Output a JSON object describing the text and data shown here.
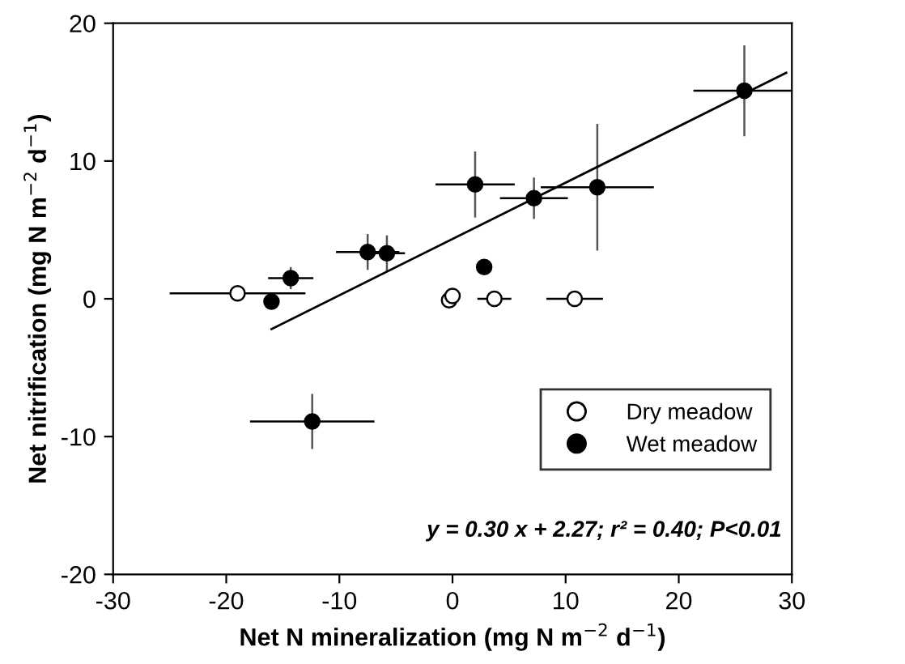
{
  "chart_data": {
    "type": "scatter",
    "xlabel": "Net N mineralization (mg N m$^{−2}$ d$^{−1}$)",
    "ylabel": "Net nitrification (mg N m$^{−2}$ d$^{−1}$)",
    "xlim": [
      -30,
      30
    ],
    "xticks": [
      -30,
      -20,
      -10,
      0,
      10,
      20,
      30
    ],
    "ylim": [
      -20,
      20
    ],
    "yticks": [
      -20,
      -10,
      0,
      10,
      20
    ],
    "grid": false,
    "legend": "bottom right",
    "series": [
      {
        "name": "Dry meadow",
        "marker": "circle",
        "color": "#ffffff",
        "x": [
          -19,
          -0.3,
          0,
          3.7,
          10.8
        ],
        "values": [
          0.4,
          -0.1,
          0.2,
          0,
          0
        ],
        "xerrors": [
          6,
          null,
          null,
          1.5,
          2.5
        ],
        "errors": [
          null,
          null,
          null,
          null,
          null
        ]
      },
      {
        "name": "Wet meadow",
        "marker": "circle",
        "color": "#000000",
        "x": [
          -16,
          -14.3,
          -12.4,
          -7.5,
          -5.8,
          2,
          2.8,
          7.2,
          12.8,
          25.8
        ],
        "values": [
          -0.2,
          1.5,
          -8.9,
          3.4,
          3.3,
          8.3,
          2.3,
          7.3,
          8.1,
          15.1
        ],
        "xerrors": [
          null,
          2,
          5.5,
          2.8,
          1.6,
          3.5,
          null,
          3,
          5,
          4.5
        ],
        "errors": [
          null,
          0.8,
          2,
          1.3,
          1.3,
          2.4,
          null,
          1.5,
          4.6,
          3.3
        ]
      },
      {
        "type": "line",
        "color": "#000000",
        "x": [
          -16,
          29.5
        ],
        "values": [
          -2.2,
          16.4
        ]
      }
    ],
    "annotations": [
      "y = 0.30 x + 2.27; r² = 0.40; P<0.01"
    ]
  }
}
